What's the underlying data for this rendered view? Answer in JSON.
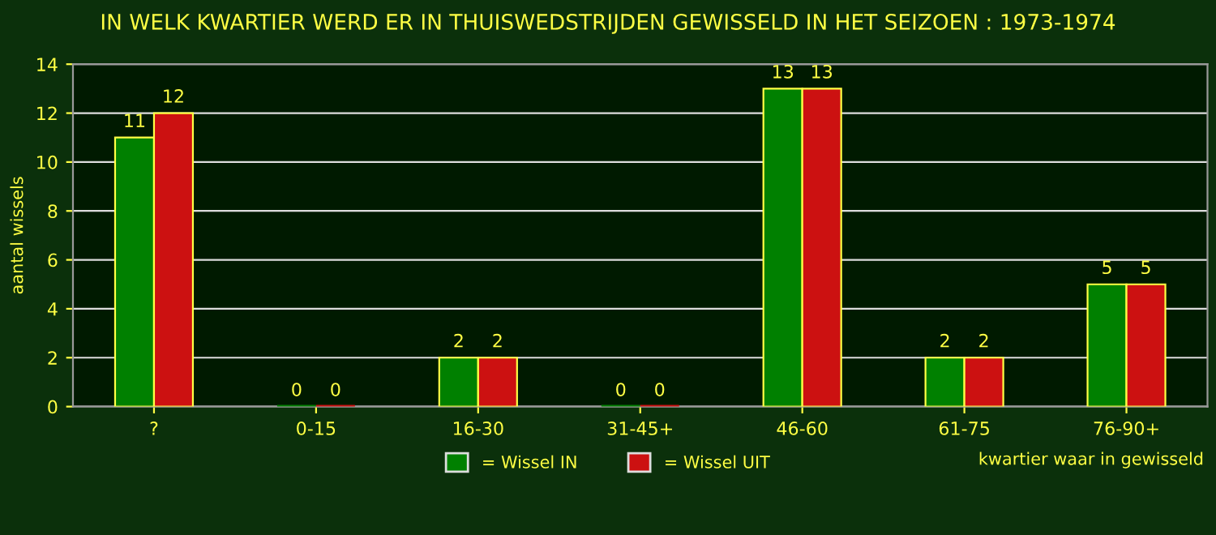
{
  "chart_data": {
    "type": "bar",
    "title": "IN WELK KWARTIER WERD ER IN THUISWEDSTRIJDEN GEWISSELD IN HET SEIZOEN : 1973-1974",
    "categories": [
      "?",
      "0-15",
      "16-30",
      "31-45+",
      "46-60",
      "61-75",
      "76-90+"
    ],
    "series": [
      {
        "name": "= Wissel IN",
        "color": "#008000",
        "values": [
          11,
          0,
          2,
          0,
          13,
          2,
          5
        ]
      },
      {
        "name": "= Wissel UIT",
        "color": "#cc1111",
        "values": [
          12,
          0,
          2,
          0,
          13,
          2,
          5
        ]
      }
    ],
    "xlabel": "kwartier waar in gewisseld",
    "ylabel": "aantal wissels",
    "ylim": [
      0,
      14
    ],
    "yticks": [
      0,
      2,
      4,
      6,
      8,
      10,
      12,
      14
    ],
    "grid": "y",
    "data_labels": true,
    "legend": "bottom"
  }
}
